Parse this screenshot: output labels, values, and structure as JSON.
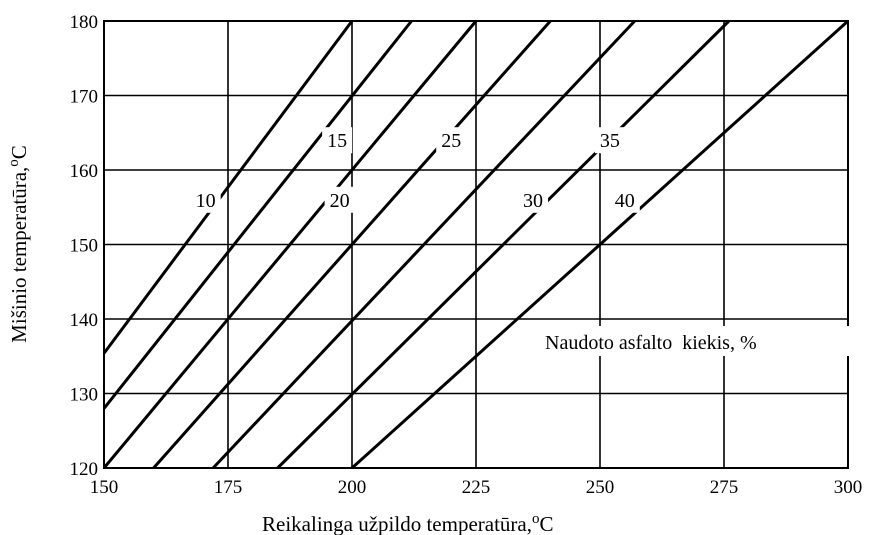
{
  "chart_data": {
    "type": "line",
    "title": "",
    "xlabel": "Reikalinga užpildo temperatūra,",
    "xlabel_unit": "oC",
    "ylabel": "Mišinio temperatūra,",
    "ylabel_unit": "oC",
    "xlim": [
      150,
      300
    ],
    "ylim": [
      120,
      180
    ],
    "x_ticks": [
      150,
      175,
      200,
      225,
      250,
      275,
      300
    ],
    "x_tick_labels": [
      "150",
      "175",
      "200",
      "225",
      "250",
      "275",
      "300"
    ],
    "y_ticks": [
      120,
      130,
      140,
      150,
      160,
      170,
      180
    ],
    "y_tick_labels": [
      "120",
      "130",
      "140",
      "150",
      "160",
      "170",
      "180"
    ],
    "grid": true,
    "annotation": "Naudoto asfalto  kiekis, %",
    "series": [
      {
        "name": "10",
        "x": [
          150,
          200
        ],
        "y": [
          135.4,
          180
        ]
      },
      {
        "name": "15",
        "x": [
          150,
          212
        ],
        "y": [
          128,
          180
        ]
      },
      {
        "name": "20",
        "x": [
          150,
          225
        ],
        "y": [
          120,
          180
        ]
      },
      {
        "name": "25",
        "x": [
          160,
          240
        ],
        "y": [
          120,
          180
        ]
      },
      {
        "name": "30",
        "x": [
          172,
          257
        ],
        "y": [
          120,
          180
        ]
      },
      {
        "name": "35",
        "x": [
          185,
          276
        ],
        "y": [
          120,
          180
        ]
      },
      {
        "name": "40",
        "x": [
          200,
          300
        ],
        "y": [
          120,
          180
        ]
      }
    ],
    "series_label_positions": [
      {
        "name": "10",
        "x": 170.5,
        "y": 156
      },
      {
        "name": "15",
        "x": 197,
        "y": 164
      },
      {
        "name": "20",
        "x": 197.5,
        "y": 156
      },
      {
        "name": "25",
        "x": 220,
        "y": 164
      },
      {
        "name": "30",
        "x": 236.5,
        "y": 156
      },
      {
        "name": "35",
        "x": 252,
        "y": 164
      },
      {
        "name": "40",
        "x": 255,
        "y": 156
      }
    ]
  }
}
